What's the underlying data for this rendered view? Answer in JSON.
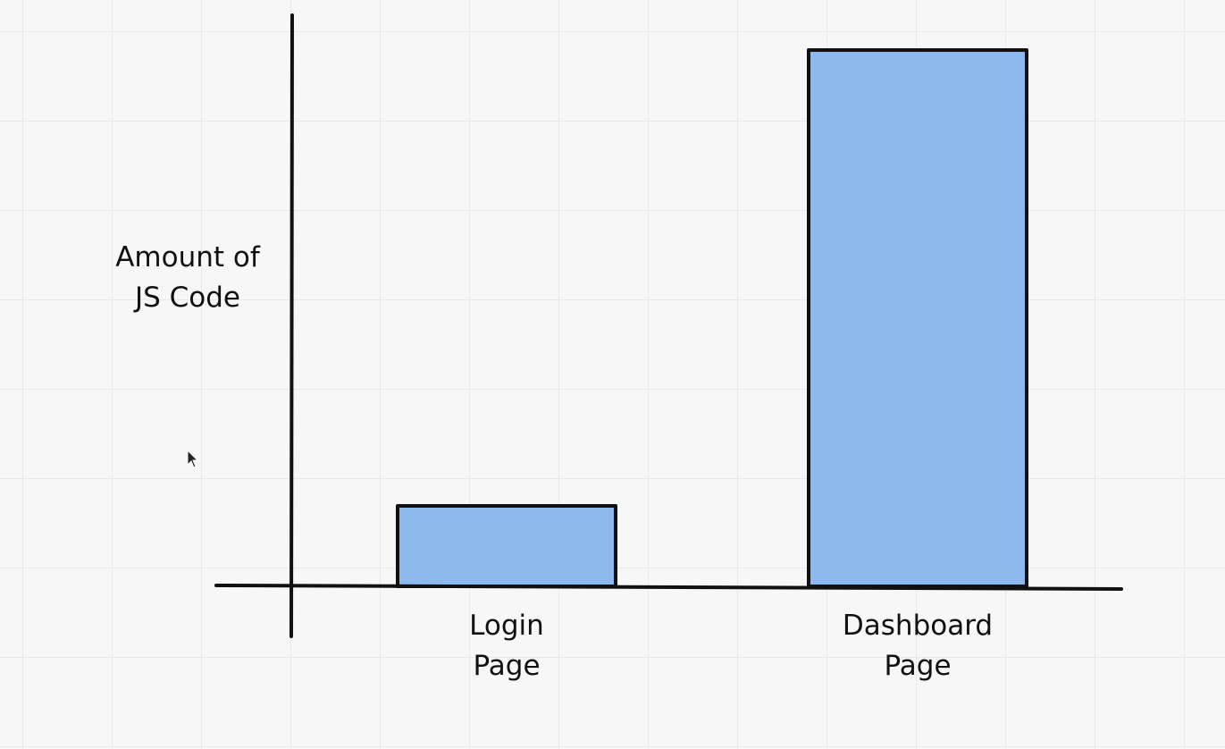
{
  "chart_data": {
    "type": "bar",
    "categories": [
      "Login\nPage",
      "Dashboard\nPage"
    ],
    "values": [
      15,
      100
    ],
    "title": "",
    "xlabel": "",
    "ylabel": "Amount of\nJS Code",
    "ylim": [
      0,
      106
    ],
    "grid": false,
    "bar_color": "#8db9ee",
    "edge_color": "#111111"
  }
}
